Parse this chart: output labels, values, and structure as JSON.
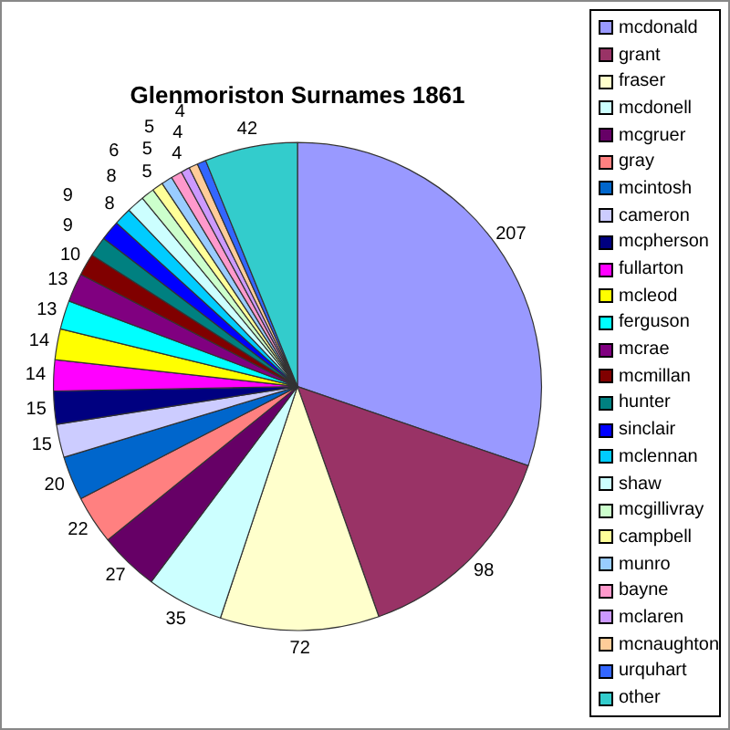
{
  "chart_data": {
    "type": "pie",
    "title": "Glenmoriston Surnames 1861",
    "categories": [
      "mcdonald",
      "grant",
      "fraser",
      "mcdonell",
      "mcgruer",
      "gray",
      "mcintosh",
      "cameron",
      "mcpherson",
      "fullarton",
      "mcleod",
      "ferguson",
      "mcrae",
      "mcmillan",
      "hunter",
      "sinclair",
      "mclennan",
      "shaw",
      "mcgillivray",
      "campbell",
      "munro",
      "bayne",
      "mclaren",
      "mcnaughton",
      "urquhart",
      "other"
    ],
    "values": [
      207,
      98,
      72,
      35,
      27,
      22,
      20,
      15,
      15,
      14,
      14,
      13,
      13,
      10,
      9,
      9,
      8,
      8,
      6,
      5,
      5,
      5,
      4,
      4,
      4,
      42
    ],
    "colors": [
      "#9999ff",
      "#993366",
      "#ffffcc",
      "#ccffff",
      "#660066",
      "#ff8080",
      "#0066cc",
      "#ccccff",
      "#000080",
      "#ff00ff",
      "#ffff00",
      "#00ffff",
      "#800080",
      "#800000",
      "#008080",
      "#0000ff",
      "#00ccff",
      "#ccffff",
      "#ccffcc",
      "#ffff99",
      "#99ccff",
      "#ff99cc",
      "#cc99ff",
      "#ffcc99",
      "#3366ff",
      "#33cccc"
    ],
    "data_labels": true,
    "legend": "right"
  }
}
